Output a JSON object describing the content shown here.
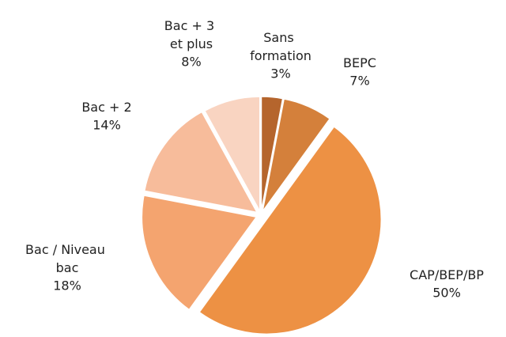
{
  "chart_data": {
    "type": "pie",
    "categories": [
      "Sans formation",
      "BEPC",
      "CAP/BEP/BP",
      "Bac / Niveau bac",
      "Bac + 2",
      "Bac + 3 et plus"
    ],
    "values": [
      3,
      7,
      50,
      18,
      14,
      8
    ],
    "value_labels": [
      "3%",
      "7%",
      "50%",
      "18%",
      "14%",
      "8%"
    ],
    "colors": [
      "#b5652d",
      "#d4803b",
      "#ed9144",
      "#f4a46f",
      "#f7bc9b",
      "#f9d4c1"
    ]
  }
}
